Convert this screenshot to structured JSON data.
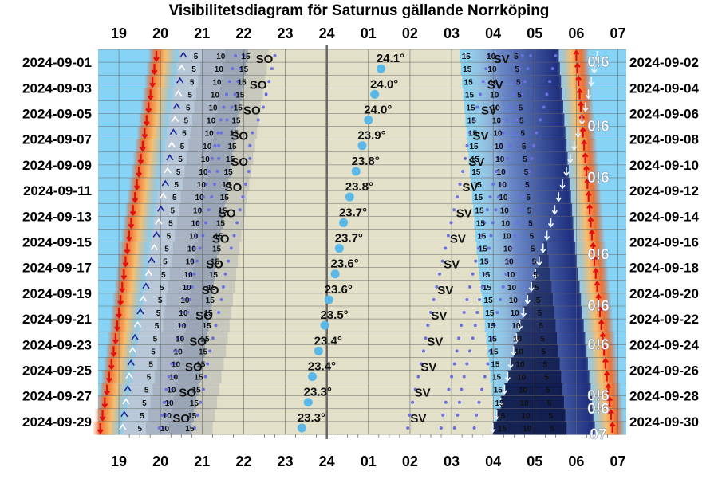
{
  "chart_data": {
    "type": "visibility-diagram",
    "title": "Visibilitetsdiagram för Saturnus gällande Norrköping",
    "hour_labels": [
      "19",
      "20",
      "21",
      "22",
      "23",
      "24",
      "01",
      "02",
      "03",
      "04",
      "05",
      "06",
      "07"
    ],
    "hour_range": [
      18.5,
      31.2
    ],
    "left_dates": [
      "2024-09-01",
      "2024-09-03",
      "2024-09-05",
      "2024-09-07",
      "2024-09-09",
      "2024-09-11",
      "2024-09-13",
      "2024-09-15",
      "2024-09-17",
      "2024-09-19",
      "2024-09-21",
      "2024-09-23",
      "2024-09-25",
      "2024-09-27",
      "2024-09-29"
    ],
    "right_dates": [
      "2024-09-02",
      "2024-09-04",
      "2024-09-06",
      "2024-09-08",
      "2024-09-10",
      "2024-09-12",
      "2024-09-14",
      "2024-09-16",
      "2024-09-18",
      "2024-09-20",
      "2024-09-22",
      "2024-09-24",
      "2024-09-26",
      "2024-09-28",
      "2024-09-30"
    ],
    "max_altitude_labels": [
      "24.1°",
      "24.0°",
      "24.0°",
      "23.9°",
      "23.8°",
      "23.8°",
      "23.7°",
      "23.7°",
      "23.6°",
      "23.6°",
      "23.5°",
      "23.4°",
      "23.4°",
      "23.3°",
      "23.3°"
    ],
    "transit_hours": [
      25.3,
      25.15,
      25.0,
      24.85,
      24.7,
      24.55,
      24.4,
      24.3,
      24.2,
      24.05,
      23.95,
      23.8,
      23.65,
      23.55,
      23.4
    ],
    "so_hours": [
      22.5,
      22.35,
      22.2,
      21.9,
      21.9,
      21.75,
      21.6,
      21.45,
      21.3,
      21.2,
      21.05,
      20.9,
      20.8,
      20.65,
      20.5
    ],
    "sv_hours": [
      28.2,
      28.05,
      27.9,
      27.7,
      27.6,
      27.45,
      27.3,
      27.15,
      27.0,
      26.85,
      26.7,
      26.6,
      26.45,
      26.3,
      26.2
    ],
    "sunset_hours": [
      19.9,
      19.55,
      19.2,
      18.9,
      18.5
    ],
    "sunrise_hours": [
      30.0,
      30.2,
      30.4,
      30.65,
      30.9
    ],
    "moonset_hours": [
      30.5,
      30.2,
      29.8,
      29.4,
      29.0,
      28.6,
      28.3,
      27.9
    ],
    "moonrise_hours": [
      20.2,
      19.9,
      19.5,
      19.0,
      18.7
    ],
    "moon_labels": [
      "0!6",
      "0!6",
      "0!6",
      "0!6",
      "0!6",
      "0!6",
      "0!6",
      "0!6",
      "07"
    ],
    "moon_label_rows": [
      1,
      6,
      10,
      16,
      20,
      23,
      27,
      28,
      30
    ],
    "twilight_labels": [
      "5",
      "10",
      "15"
    ],
    "altitude_markers": [
      "SO",
      "SV"
    ],
    "colors": {
      "sky": "#87d3f5",
      "night": "#e2e0c8",
      "sunset_glow": "#f5a030",
      "moon_dark": "#0f1a4a",
      "arrow_red": "#e01010",
      "arrow_blue": "#1a2a9a",
      "transit_dot": "#5ab8e8",
      "grid": "#666666"
    }
  }
}
